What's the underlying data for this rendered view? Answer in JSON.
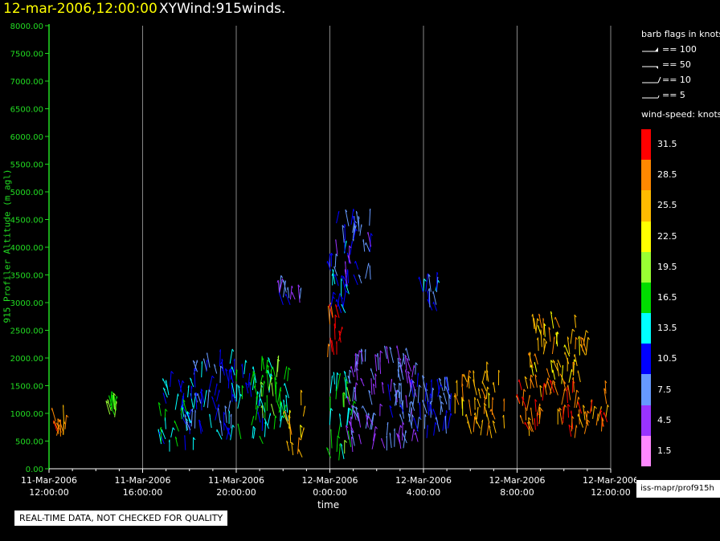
{
  "header": {
    "date_time": "12-mar-2006,12:00:00",
    "product": "XYWind:915winds."
  },
  "legend": {
    "barb_title": "barb flags in knots",
    "barbs": [
      "== 100",
      "== 50",
      "== 10",
      "== 5"
    ],
    "speed_title": "wind-speed: knots",
    "speed_levels": [
      {
        "label": "31.5",
        "color": "#ff0000"
      },
      {
        "label": "28.5",
        "color": "#ff8800"
      },
      {
        "label": "25.5",
        "color": "#ffbb00"
      },
      {
        "label": "22.5",
        "color": "#ffff00"
      },
      {
        "label": "19.5",
        "color": "#99ff33"
      },
      {
        "label": "16.5",
        "color": "#00dd00"
      },
      {
        "label": "13.5",
        "color": "#00ffff"
      },
      {
        "label": "10.5",
        "color": "#0000ff"
      },
      {
        "label": "7.5",
        "color": "#6699ff"
      },
      {
        "label": "4.5",
        "color": "#9933ff"
      },
      {
        "label": "1.5",
        "color": "#ff88ff"
      }
    ],
    "footer": "iss-mapr/prof915h"
  },
  "qc_note": "REAL-TIME DATA, NOT CHECKED FOR QUALITY",
  "chart_data": {
    "type": "scatter",
    "subtype": "wind barb time-height plot",
    "title": "XYWind:915winds.",
    "xlabel": "time",
    "ylabel": "915 Profiler Altitude (m agl)",
    "ylim": [
      0,
      8000
    ],
    "y_ticks": [
      "0.00",
      "500.00",
      "1000.00",
      "1500.00",
      "2000.00",
      "2500.00",
      "3000.00",
      "3500.00",
      "4000.00",
      "4500.00",
      "5000.00",
      "5500.00",
      "6000.00",
      "6500.00",
      "7000.00",
      "7500.00",
      "8000.00"
    ],
    "x_ticks": [
      {
        "date": "11-Mar-2006",
        "time": "12:00:00",
        "hours": 0
      },
      {
        "date": "11-Mar-2006",
        "time": "16:00:00",
        "hours": 4
      },
      {
        "date": "11-Mar-2006",
        "time": "20:00:00",
        "hours": 8
      },
      {
        "date": "12-Mar-2006",
        "time": "0:00:00",
        "hours": 12
      },
      {
        "date": "12-Mar-2006",
        "time": "4:00:00",
        "hours": 16
      },
      {
        "date": "12-Mar-2006",
        "time": "8:00:00",
        "hours": 20
      },
      {
        "date": "12-Mar-2006",
        "time": "12:00:00",
        "hours": 24
      }
    ],
    "grid": "vertical lines at major time ticks",
    "color_by": "wind speed (knots)",
    "clusters": [
      {
        "hours": [
          0.2,
          0.7
        ],
        "altitude": [
          550,
          900
        ],
        "speed_knots": 28
      },
      {
        "hours": [
          2.6,
          2.9
        ],
        "altitude": [
          900,
          1150
        ],
        "speed_knots": 18
      },
      {
        "hours": [
          4.6,
          6.2
        ],
        "altitude": [
          300,
          1500
        ],
        "speed_knots": 13
      },
      {
        "hours": [
          5.9,
          7.9
        ],
        "altitude": [
          500,
          1950
        ],
        "speed_knots": 10
      },
      {
        "hours": [
          7.8,
          9.6
        ],
        "altitude": [
          500,
          1850
        ],
        "speed_knots": 14
      },
      {
        "hours": [
          9.0,
          10.3
        ],
        "altitude": [
          400,
          1800
        ],
        "speed_knots": 17
      },
      {
        "hours": [
          10.2,
          10.9
        ],
        "altitude": [
          200,
          1200
        ],
        "speed_knots": 26
      },
      {
        "hours": [
          9.8,
          10.9
        ],
        "altitude": [
          2950,
          3250
        ],
        "speed_knots": 7
      },
      {
        "hours": [
          11.9,
          12.9
        ],
        "altitude": [
          150,
          1600
        ],
        "speed_knots": 16
      },
      {
        "hours": [
          11.9,
          12.5
        ],
        "altitude": [
          2000,
          2800
        ],
        "speed_knots": 31
      },
      {
        "hours": [
          11.9,
          12.9
        ],
        "altitude": [
          2800,
          3950
        ],
        "speed_knots": 12
      },
      {
        "hours": [
          12.2,
          13.8
        ],
        "altitude": [
          3300,
          4450
        ],
        "speed_knots": 8
      },
      {
        "hours": [
          12.8,
          15.8
        ],
        "altitude": [
          300,
          2000
        ],
        "speed_knots": 6
      },
      {
        "hours": [
          14.5,
          17.2
        ],
        "altitude": [
          550,
          1500
        ],
        "speed_knots": 9
      },
      {
        "hours": [
          15.9,
          16.6
        ],
        "altitude": [
          2800,
          3250
        ],
        "speed_knots": 11
      },
      {
        "hours": [
          17.3,
          19.5
        ],
        "altitude": [
          550,
          1600
        ],
        "speed_knots": 26
      },
      {
        "hours": [
          20.1,
          24.0
        ],
        "altitude": [
          550,
          1500
        ],
        "speed_knots": 29
      },
      {
        "hours": [
          20.5,
          23.0
        ],
        "altitude": [
          1500,
          2550
        ],
        "speed_knots": 25
      }
    ]
  }
}
